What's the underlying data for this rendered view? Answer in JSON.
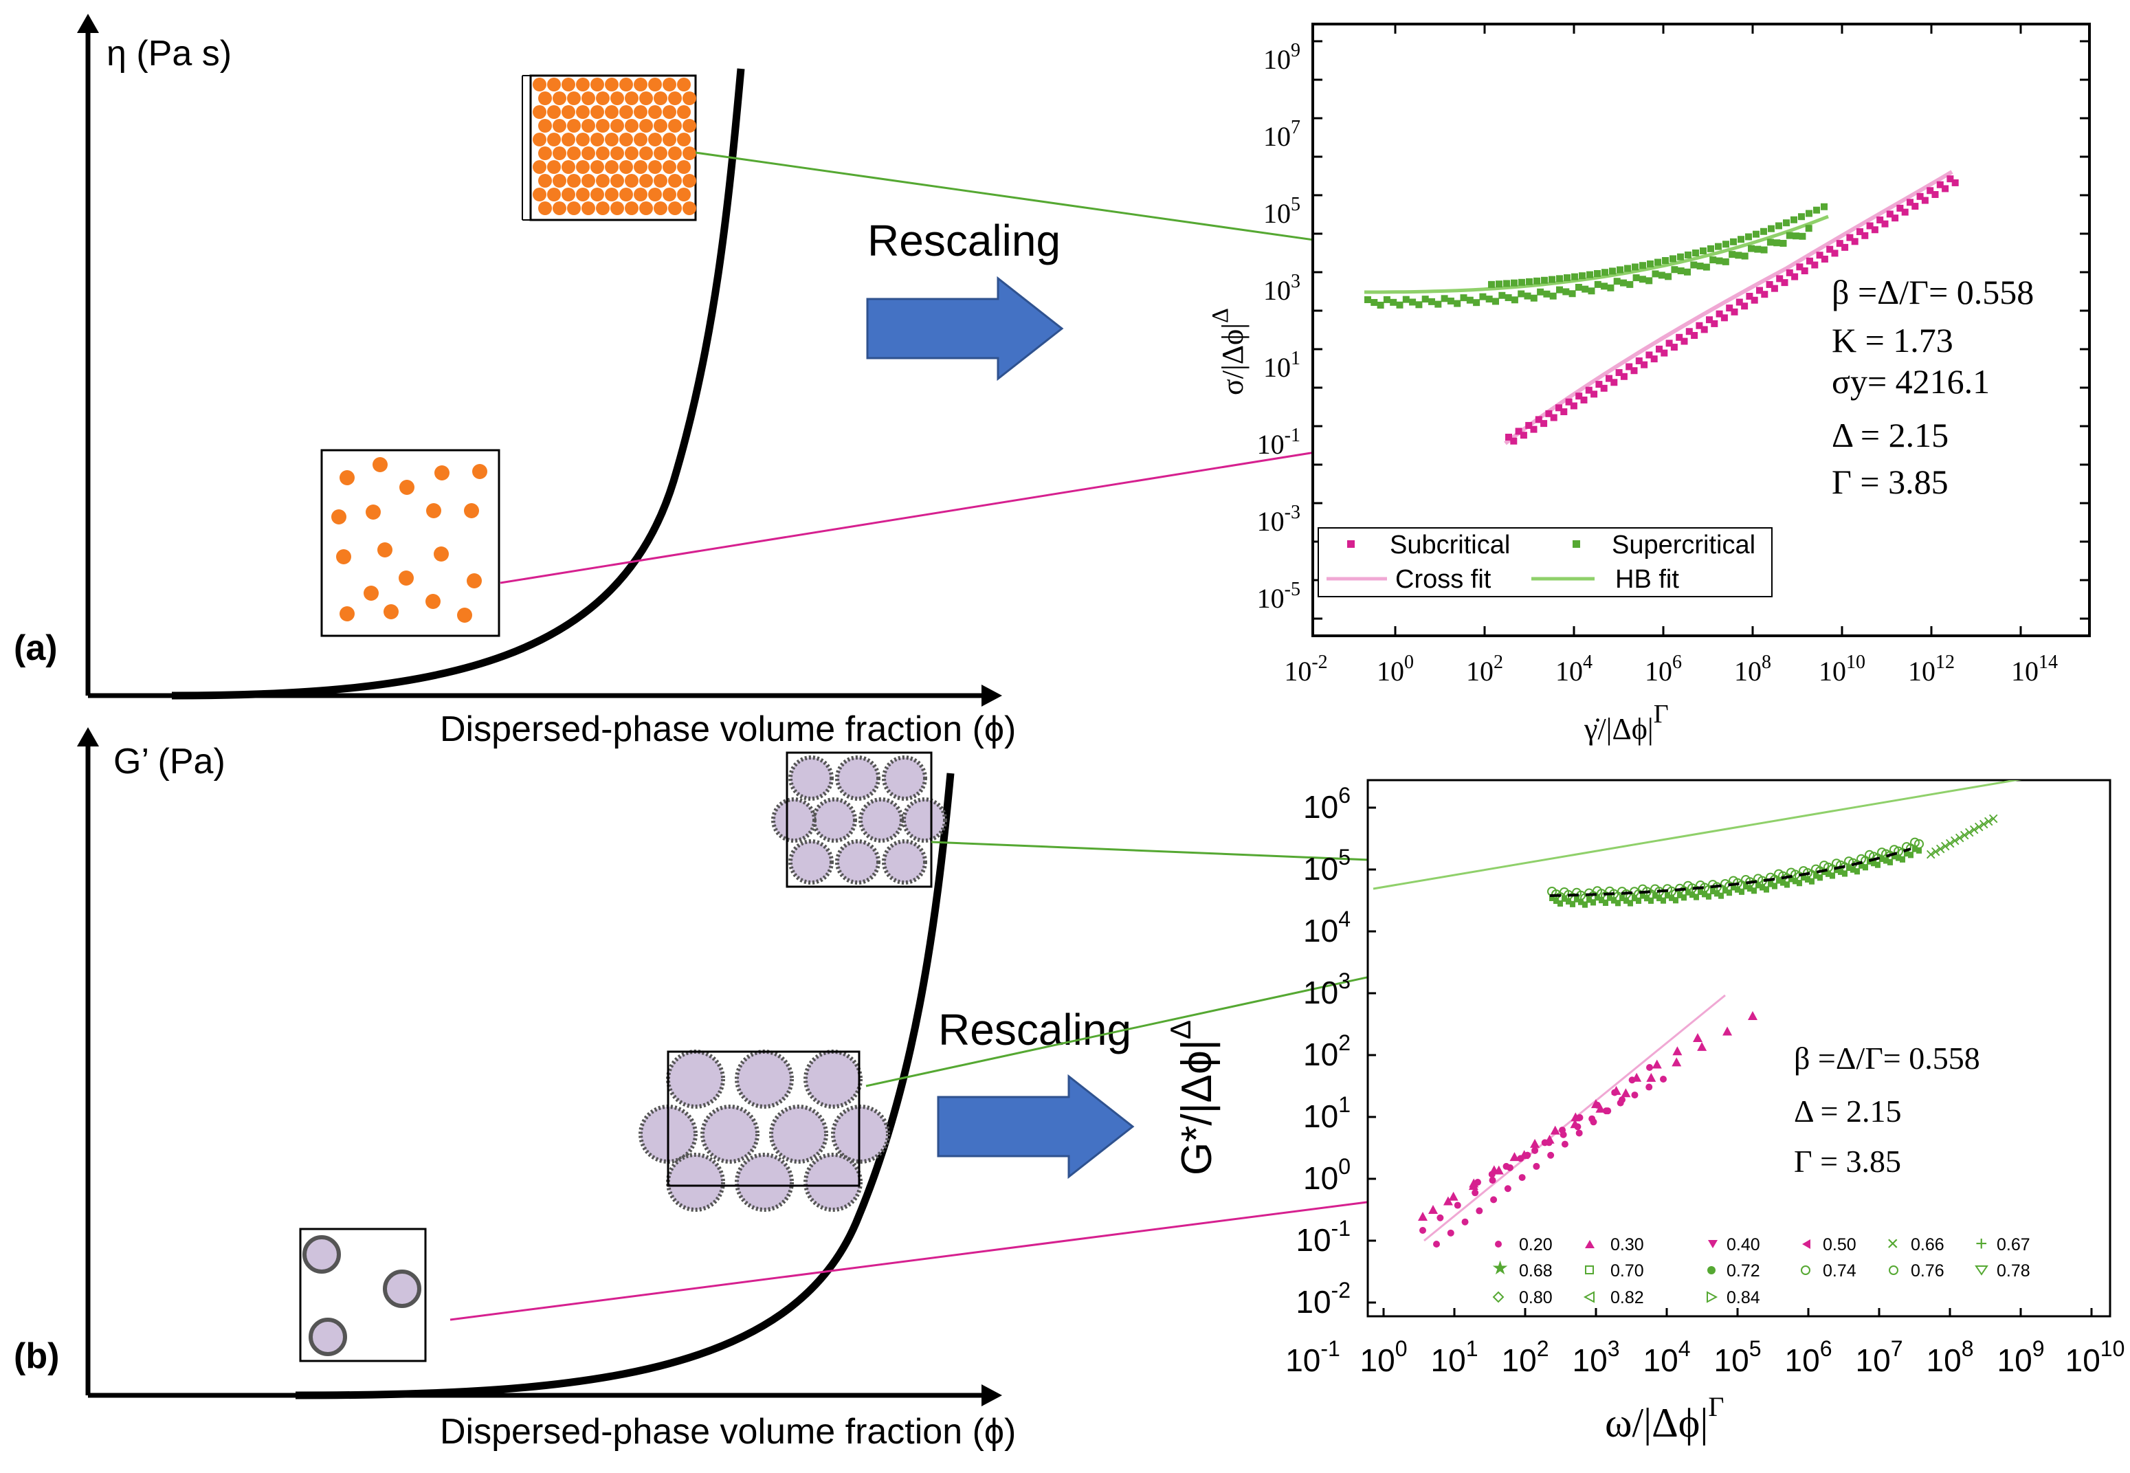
{
  "colors": {
    "curve": "#000000",
    "orange": "#f57c1f",
    "purple": "#cfc2dc",
    "magenta": "#d6208f",
    "pink_fit": "#f0a8d4",
    "green": "#55a832",
    "light_green": "#8fd06a",
    "blue_arrow": "#4472c4"
  },
  "panel_a": {
    "label": "(a)",
    "y_axis_label": "η (Pa s)",
    "x_axis_label": "Dispersed-phase volume fraction (ϕ)",
    "rescaling_label": "Rescaling",
    "plot": {
      "y_label": "σ/|Δϕ|",
      "y_label_exp": "Δ",
      "x_label": "γ̇/|Δϕ|",
      "x_label_exp": "Γ",
      "y_ticks": [
        {
          "base": "10",
          "exp": "9"
        },
        {
          "base": "10",
          "exp": "7"
        },
        {
          "base": "10",
          "exp": "5"
        },
        {
          "base": "10",
          "exp": "3"
        },
        {
          "base": "10",
          "exp": "1"
        },
        {
          "base": "10",
          "exp": "-1"
        },
        {
          "base": "10",
          "exp": "-3"
        },
        {
          "base": "10",
          "exp": "-5"
        }
      ],
      "x_ticks": [
        {
          "base": "10",
          "exp": "-2"
        },
        {
          "base": "10",
          "exp": "0"
        },
        {
          "base": "10",
          "exp": "2"
        },
        {
          "base": "10",
          "exp": "4"
        },
        {
          "base": "10",
          "exp": "6"
        },
        {
          "base": "10",
          "exp": "8"
        },
        {
          "base": "10",
          "exp": "10"
        },
        {
          "base": "10",
          "exp": "12"
        },
        {
          "base": "10",
          "exp": "14"
        }
      ],
      "params": [
        "β =Δ/Γ= 0.558",
        "K = 1.73",
        "σy= 4216.1",
        "Δ = 2.15",
        "Γ = 3.85"
      ],
      "legend": [
        "Subcritical",
        "Supercritical",
        "Cross fit",
        "HB fit"
      ]
    }
  },
  "panel_b": {
    "label": "(b)",
    "y_axis_label": "G’ (Pa)",
    "x_axis_label": "Dispersed-phase volume fraction (ϕ)",
    "rescaling_label": "Rescaling",
    "plot": {
      "y_label": "G*/|Δϕ|",
      "y_label_exp": "Δ",
      "x_label": "ω/|Δϕ|",
      "x_label_exp": "Γ",
      "y_ticks": [
        {
          "base": "10",
          "exp": "6"
        },
        {
          "base": "10",
          "exp": "5"
        },
        {
          "base": "10",
          "exp": "4"
        },
        {
          "base": "10",
          "exp": "3"
        },
        {
          "base": "10",
          "exp": "2"
        },
        {
          "base": "10",
          "exp": "1"
        },
        {
          "base": "10",
          "exp": "0"
        },
        {
          "base": "10",
          "exp": "-1"
        },
        {
          "base": "10",
          "exp": "-2"
        }
      ],
      "x_ticks": [
        {
          "base": "10",
          "exp": "-1"
        },
        {
          "base": "10",
          "exp": "0"
        },
        {
          "base": "10",
          "exp": "1"
        },
        {
          "base": "10",
          "exp": "2"
        },
        {
          "base": "10",
          "exp": "3"
        },
        {
          "base": "10",
          "exp": "4"
        },
        {
          "base": "10",
          "exp": "5"
        },
        {
          "base": "10",
          "exp": "6"
        },
        {
          "base": "10",
          "exp": "7"
        },
        {
          "base": "10",
          "exp": "8"
        },
        {
          "base": "10",
          "exp": "9"
        },
        {
          "base": "10",
          "exp": "10"
        }
      ],
      "params": [
        "β =Δ/Γ= 0.558",
        "Δ = 2.15",
        "Γ = 3.85"
      ],
      "legend": [
        "0.20",
        "0.30",
        "0.40",
        "0.50",
        "0.66",
        "0.67",
        "0.68",
        "0.70",
        "0.72",
        "0.74",
        "0.76",
        "0.78",
        "0.80",
        "0.82",
        "0.84"
      ]
    }
  }
}
